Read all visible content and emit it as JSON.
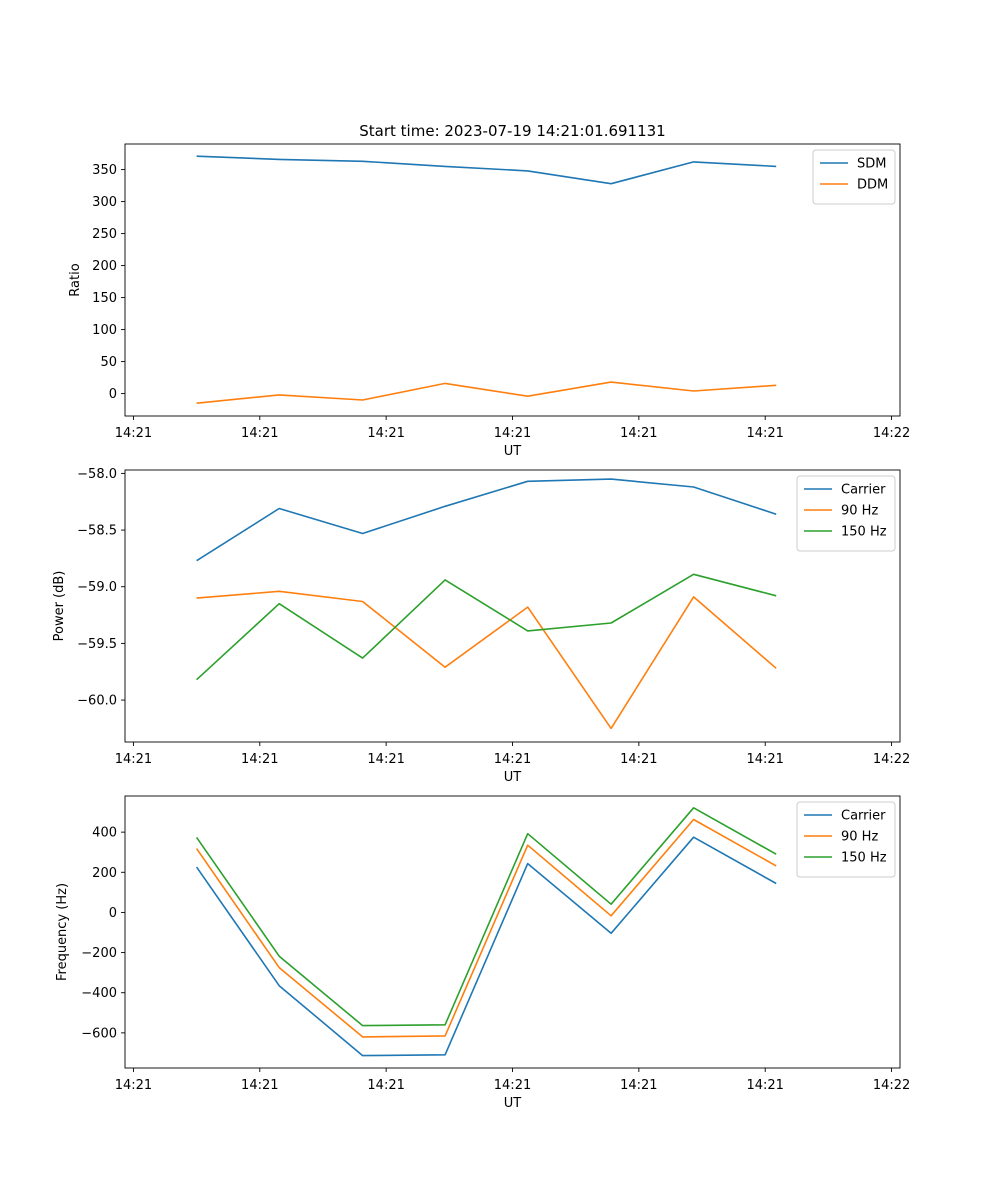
{
  "chart_data": [
    {
      "type": "line",
      "title": "Start time: 2023-07-19 14:21:01.691131",
      "xlabel": "UT",
      "ylabel": "Ratio",
      "xlim": [
        -0.1,
        9.1
      ],
      "ylim": [
        -35,
        390
      ],
      "yticks": [
        0,
        50,
        100,
        150,
        200,
        250,
        300,
        350
      ],
      "xticks": [
        0,
        1.5,
        3,
        4.5,
        6,
        7.5,
        9
      ],
      "xtick_labels": [
        "14:21",
        "14:21",
        "14:21",
        "14:21",
        "14:21",
        "14:21",
        "14:22"
      ],
      "legend": "top-right",
      "x": [
        0.75,
        1.73,
        2.72,
        3.7,
        4.68,
        5.67,
        6.65,
        7.63
      ],
      "series": [
        {
          "name": "SDM",
          "color": "#1f77b4",
          "values": [
            371,
            366,
            363,
            355,
            348,
            328,
            362,
            355
          ]
        },
        {
          "name": "DDM",
          "color": "#ff7f0e",
          "values": [
            -15,
            -2,
            -10,
            16,
            -4,
            18,
            4,
            13
          ]
        }
      ]
    },
    {
      "type": "line",
      "title": "",
      "xlabel": "UT",
      "ylabel": "Power (dB)",
      "xlim": [
        -0.1,
        9.1
      ],
      "ylim": [
        -60.37,
        -57.97
      ],
      "yticks": [
        -60.0,
        -59.5,
        -59.0,
        -58.5,
        -58.0
      ],
      "ytick_labels": [
        "−60.0",
        "−59.5",
        "−59.0",
        "−58.5",
        "−58.0"
      ],
      "xticks": [
        0,
        1.5,
        3,
        4.5,
        6,
        7.5,
        9
      ],
      "xtick_labels": [
        "14:21",
        "14:21",
        "14:21",
        "14:21",
        "14:21",
        "14:21",
        "14:22"
      ],
      "legend": "top-right",
      "x": [
        0.75,
        1.73,
        2.72,
        3.7,
        4.68,
        5.67,
        6.65,
        7.63
      ],
      "series": [
        {
          "name": "Carrier",
          "color": "#1f77b4",
          "values": [
            -58.77,
            -58.31,
            -58.53,
            -58.29,
            -58.07,
            -58.05,
            -58.12,
            -58.36
          ]
        },
        {
          "name": "90 Hz",
          "color": "#ff7f0e",
          "values": [
            -59.1,
            -59.04,
            -59.13,
            -59.71,
            -59.18,
            -60.25,
            -59.09,
            -59.72
          ]
        },
        {
          "name": "150 Hz",
          "color": "#2ca02c",
          "values": [
            -59.82,
            -59.15,
            -59.63,
            -58.94,
            -59.39,
            -59.32,
            -58.89,
            -59.08
          ]
        }
      ]
    },
    {
      "type": "line",
      "title": "",
      "xlabel": "UT",
      "ylabel": "Frequency (Hz)",
      "xlim": [
        -0.1,
        9.1
      ],
      "ylim": [
        -775,
        580
      ],
      "yticks": [
        -600,
        -400,
        -200,
        0,
        200,
        400
      ],
      "ytick_labels": [
        "−600",
        "−400",
        "−200",
        "0",
        "200",
        "400"
      ],
      "xticks": [
        0,
        1.5,
        3,
        4.5,
        6,
        7.5,
        9
      ],
      "xtick_labels": [
        "14:21",
        "14:21",
        "14:21",
        "14:21",
        "14:21",
        "14:21",
        "14:22"
      ],
      "legend": "top-right",
      "x": [
        0.75,
        1.73,
        2.72,
        3.7,
        4.68,
        5.67,
        6.65,
        7.63
      ],
      "series": [
        {
          "name": "Carrier",
          "color": "#1f77b4",
          "values": [
            226,
            -365,
            -713,
            -709,
            243,
            -104,
            375,
            144
          ]
        },
        {
          "name": "90 Hz",
          "color": "#ff7f0e",
          "values": [
            318,
            -275,
            -620,
            -615,
            335,
            -17,
            463,
            232
          ]
        },
        {
          "name": "150 Hz",
          "color": "#2ca02c",
          "values": [
            374,
            -218,
            -564,
            -560,
            392,
            41,
            521,
            290
          ]
        }
      ]
    }
  ]
}
